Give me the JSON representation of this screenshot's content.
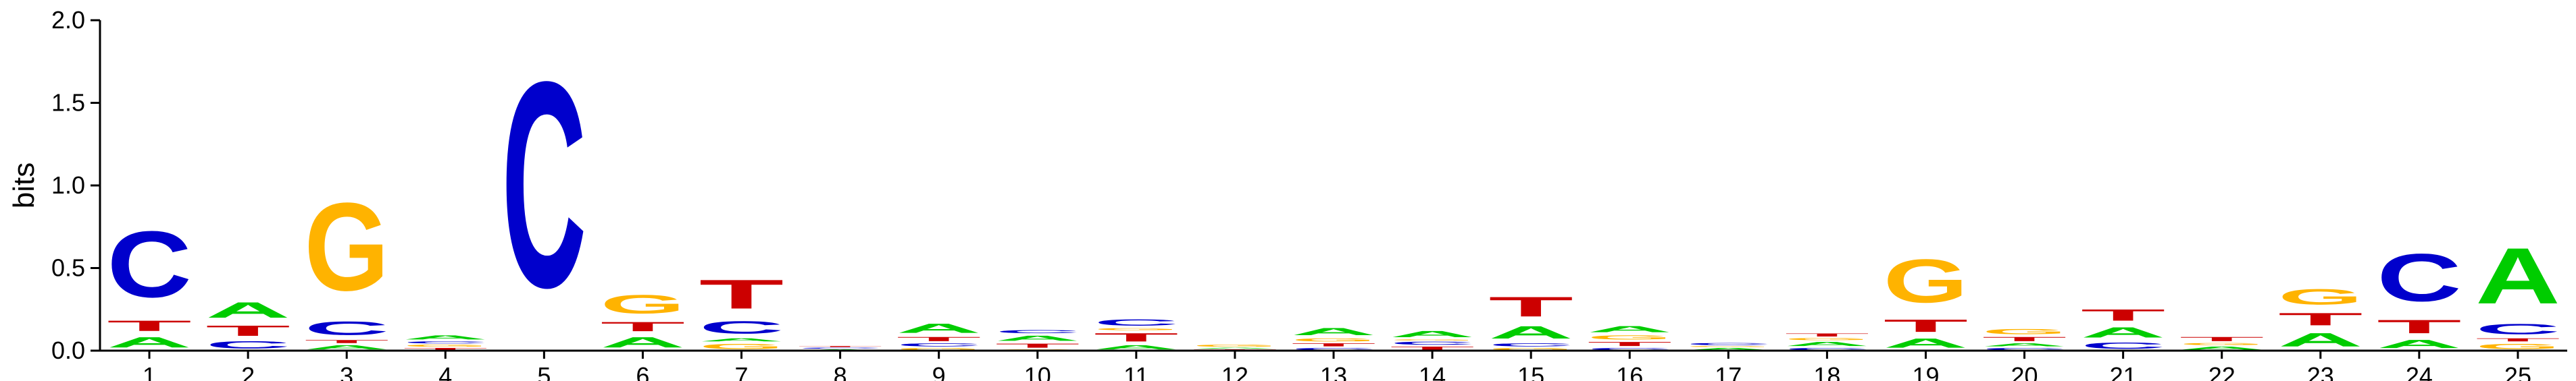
{
  "chart_data": {
    "type": "sequence-logo",
    "title": "",
    "xlabel": "",
    "ylabel": "bits",
    "ylim": [
      0,
      2.0
    ],
    "yticks": [
      "0.0",
      "0.5",
      "1.0",
      "1.5",
      "2.0"
    ],
    "positions": [
      "1",
      "2",
      "3",
      "4",
      "5",
      "6",
      "7",
      "8",
      "9",
      "10",
      "11",
      "12",
      "13",
      "14",
      "15",
      "16",
      "17",
      "18",
      "19",
      "20",
      "21",
      "22",
      "23",
      "24",
      "25"
    ],
    "colors": {
      "A": "#00cc00",
      "C": "#0000cc",
      "G": "#ffb300",
      "T": "#cc0000"
    },
    "stacks": [
      [
        {
          "base": "A",
          "bits": 0.1
        },
        {
          "base": "T",
          "bits": 0.1
        },
        {
          "base": "C",
          "bits": 0.64
        }
      ],
      [
        {
          "base": "C",
          "bits": 0.07
        },
        {
          "base": "T",
          "bits": 0.1
        },
        {
          "base": "A",
          "bits": 0.15
        }
      ],
      [
        {
          "base": "A",
          "bits": 0.04
        },
        {
          "base": "T",
          "bits": 0.03
        },
        {
          "base": "C",
          "bits": 0.13
        },
        {
          "base": "G",
          "bits": 0.85
        }
      ],
      [
        {
          "base": "T",
          "bits": 0.02
        },
        {
          "base": "G",
          "bits": 0.02
        },
        {
          "base": "C",
          "bits": 0.02
        },
        {
          "base": "A",
          "bits": 0.04
        }
      ],
      [
        {
          "base": "C",
          "bits": 1.99
        }
      ],
      [
        {
          "base": "A",
          "bits": 0.1
        },
        {
          "base": "T",
          "bits": 0.09
        },
        {
          "base": "G",
          "bits": 0.18
        }
      ],
      [
        {
          "base": "G",
          "bits": 0.05
        },
        {
          "base": "A",
          "bits": 0.03
        },
        {
          "base": "C",
          "bits": 0.12
        },
        {
          "base": "T",
          "bits": 0.28
        }
      ],
      [
        {
          "base": "A",
          "bits": 0.01
        },
        {
          "base": "C",
          "bits": 0.01
        },
        {
          "base": "T",
          "bits": 0.01
        }
      ],
      [
        {
          "base": "G",
          "bits": 0.02
        },
        {
          "base": "C",
          "bits": 0.03
        },
        {
          "base": "T",
          "bits": 0.04
        },
        {
          "base": "A",
          "bits": 0.09
        }
      ],
      [
        {
          "base": "G",
          "bits": 0.01
        },
        {
          "base": "T",
          "bits": 0.04
        },
        {
          "base": "A",
          "bits": 0.05
        },
        {
          "base": "C",
          "bits": 0.03
        }
      ],
      [
        {
          "base": "A",
          "bits": 0.04
        },
        {
          "base": "T",
          "bits": 0.08
        },
        {
          "base": "G",
          "bits": 0.02
        },
        {
          "base": "C",
          "bits": 0.06
        }
      ],
      [
        {
          "base": "T",
          "bits": 0.01
        },
        {
          "base": "A",
          "bits": 0.01
        },
        {
          "base": "G",
          "bits": 0.02
        }
      ],
      [
        {
          "base": "C",
          "bits": 0.02
        },
        {
          "base": "T",
          "bits": 0.03
        },
        {
          "base": "G",
          "bits": 0.03
        },
        {
          "base": "A",
          "bits": 0.07
        }
      ],
      [
        {
          "base": "T",
          "bits": 0.03
        },
        {
          "base": "C",
          "bits": 0.03
        },
        {
          "base": "G",
          "bits": 0.01
        },
        {
          "base": "A",
          "bits": 0.06
        }
      ],
      [
        {
          "base": "G",
          "bits": 0.02
        },
        {
          "base": "C",
          "bits": 0.03
        },
        {
          "base": "A",
          "bits": 0.12
        },
        {
          "base": "T",
          "bits": 0.19
        }
      ],
      [
        {
          "base": "C",
          "bits": 0.02
        },
        {
          "base": "T",
          "bits": 0.04
        },
        {
          "base": "G",
          "bits": 0.04
        },
        {
          "base": "A",
          "bits": 0.06
        }
      ],
      [
        {
          "base": "A",
          "bits": 0.02
        },
        {
          "base": "G",
          "bits": 0.01
        },
        {
          "base": "C",
          "bits": 0.02
        }
      ],
      [
        {
          "base": "C",
          "bits": 0.02
        },
        {
          "base": "A",
          "bits": 0.04
        },
        {
          "base": "G",
          "bits": 0.02
        },
        {
          "base": "T",
          "bits": 0.03
        }
      ],
      [
        {
          "base": "A",
          "bits": 0.09
        },
        {
          "base": "T",
          "bits": 0.12
        },
        {
          "base": "G",
          "bits": 0.42
        }
      ],
      [
        {
          "base": "C",
          "bits": 0.02
        },
        {
          "base": "A",
          "bits": 0.03
        },
        {
          "base": "T",
          "bits": 0.04
        },
        {
          "base": "G",
          "bits": 0.05
        }
      ],
      [
        {
          "base": "C",
          "bits": 0.06
        },
        {
          "base": "A",
          "bits": 0.1
        },
        {
          "base": "T",
          "bits": 0.11
        }
      ],
      [
        {
          "base": "A",
          "bits": 0.03
        },
        {
          "base": "G",
          "bits": 0.02
        },
        {
          "base": "T",
          "bits": 0.04
        }
      ],
      [
        {
          "base": "A",
          "bits": 0.13
        },
        {
          "base": "T",
          "bits": 0.12
        },
        {
          "base": "G",
          "bits": 0.15
        }
      ],
      [
        {
          "base": "A",
          "bits": 0.08
        },
        {
          "base": "T",
          "bits": 0.13
        },
        {
          "base": "C",
          "bits": 0.46
        }
      ],
      [
        {
          "base": "G",
          "bits": 0.05
        },
        {
          "base": "T",
          "bits": 0.03
        },
        {
          "base": "C",
          "bits": 0.1
        },
        {
          "base": "A",
          "bits": 0.54
        }
      ]
    ]
  }
}
